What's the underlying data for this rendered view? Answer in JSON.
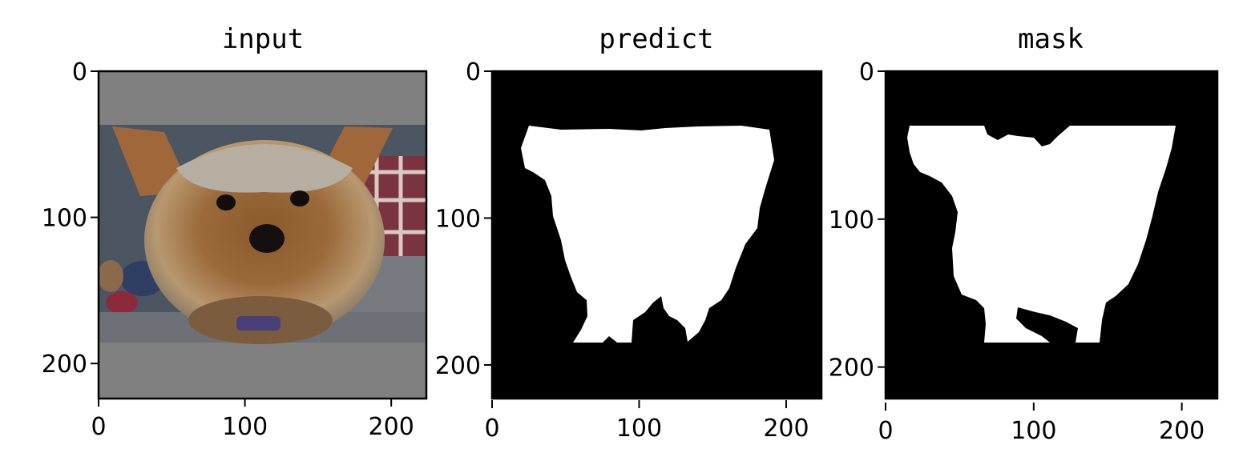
{
  "chart_data": [
    {
      "type": "image",
      "title": "input",
      "xlim": [
        0,
        224
      ],
      "ylim": [
        224,
        0
      ],
      "xticks": [
        0,
        100,
        200
      ],
      "yticks": [
        0,
        100,
        200
      ],
      "xtick_labels": [
        "0",
        "100",
        "200"
      ],
      "ytick_labels": [
        "0",
        "100",
        "200"
      ],
      "content": "letterboxed photo of a Yorkshire terrier face",
      "padding_color": "#808080",
      "image_rows": [
        37,
        185
      ]
    },
    {
      "type": "image",
      "title": "predict",
      "xlim": [
        0,
        224
      ],
      "ylim": [
        224,
        0
      ],
      "xticks": [
        0,
        100,
        200
      ],
      "yticks": [
        0,
        100,
        200
      ],
      "xtick_labels": [
        "0",
        "100",
        "200"
      ],
      "ytick_labels": [
        "0",
        "100",
        "200"
      ],
      "content": "binary segmentation mask (white foreground on black)",
      "foreground_color": "#ffffff",
      "background_color": "#000000"
    },
    {
      "type": "image",
      "title": "mask",
      "xlim": [
        0,
        224
      ],
      "ylim": [
        224,
        0
      ],
      "xticks": [
        0,
        100,
        200
      ],
      "yticks": [
        0,
        100,
        200
      ],
      "xtick_labels": [
        "0",
        "100",
        "200"
      ],
      "ytick_labels": [
        "0",
        "100",
        "200"
      ],
      "content": "ground-truth binary mask (white foreground on black)",
      "foreground_color": "#ffffff",
      "background_color": "#000000"
    }
  ]
}
